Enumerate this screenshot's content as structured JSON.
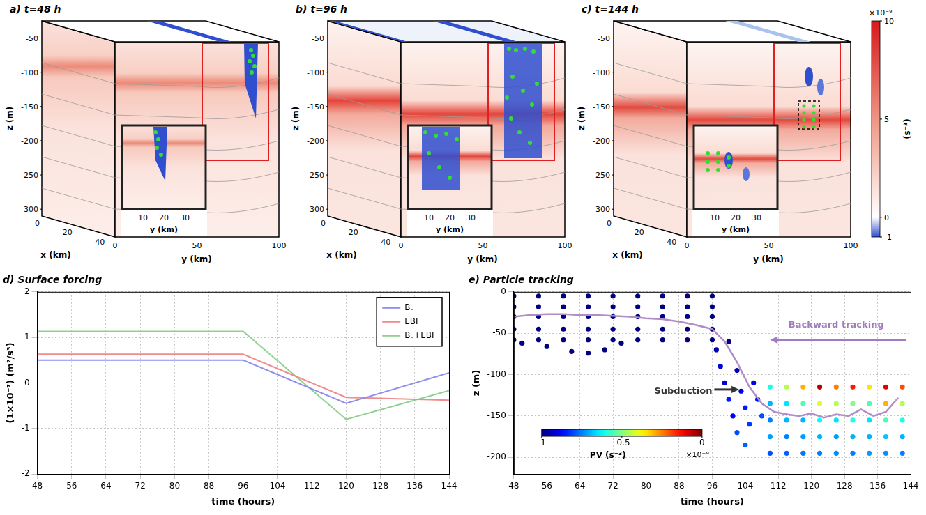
{
  "figure_3d": {
    "panels": [
      {
        "title": "a) t=48 h"
      },
      {
        "title": "b) t=96 h"
      },
      {
        "title": "c) t=144 h"
      }
    ],
    "z_label": "z (m)",
    "zlim": [
      -25,
      -310
    ],
    "zticks": [
      -50,
      -100,
      -150,
      -200,
      -250,
      -300
    ],
    "x_label": "x (km)",
    "xlim": [
      0,
      45
    ],
    "xticks": [
      0,
      20,
      40
    ],
    "y_label": "y (km)",
    "ylim": [
      0,
      100
    ],
    "yticks": [
      0,
      50,
      100
    ],
    "inset_y_label": "y (km)",
    "inset_ylim": [
      0,
      40
    ],
    "inset_yticks": [
      10,
      20,
      30
    ],
    "colorbar": {
      "label": "(s⁻³)",
      "multiplier": "×10⁻⁹",
      "range": [
        -1,
        10
      ],
      "ticks": [
        10,
        5,
        0,
        -1
      ]
    }
  },
  "chart_data": [
    {
      "type": "line",
      "title": "d) Surface forcing",
      "x_label": "time (hours)",
      "y_label": "(1×10⁻⁷) (m²/s³)",
      "x": [
        48,
        96,
        120,
        144
      ],
      "xlim": [
        48,
        144
      ],
      "xticks": [
        48,
        56,
        64,
        72,
        80,
        88,
        96,
        104,
        112,
        120,
        128,
        136,
        144
      ],
      "ylim": [
        -2,
        2
      ],
      "yticks": [
        -2,
        -1,
        0,
        1,
        2
      ],
      "grid": true,
      "legend": "upper right",
      "series": [
        {
          "name": "B₀",
          "color": "#8f8ff0",
          "values": [
            0.5,
            0.5,
            -0.45,
            0.22
          ]
        },
        {
          "name": "EBF",
          "color": "#f08c8c",
          "values": [
            0.63,
            0.63,
            -0.32,
            -0.38
          ]
        },
        {
          "name": "B₀+EBF",
          "color": "#8fd18f",
          "values": [
            1.13,
            1.13,
            -0.8,
            -0.17
          ]
        }
      ]
    },
    {
      "type": "scatter",
      "title": "e) Particle tracking",
      "x_label": "time (hours)",
      "y_label": "z (m)",
      "xlim": [
        48,
        144
      ],
      "xticks": [
        48,
        56,
        64,
        72,
        80,
        88,
        96,
        104,
        112,
        120,
        128,
        136,
        144
      ],
      "ylim": [
        -220,
        0
      ],
      "yticks": [
        -200,
        -150,
        -100,
        -50,
        0
      ],
      "grid": true,
      "colorbar": {
        "label": "PV (s⁻³)",
        "multiplier": "×10⁻⁹",
        "range": [
          -1,
          0
        ],
        "ticks": [
          -1,
          -0.5,
          0
        ]
      },
      "annotations": [
        {
          "text": "Subduction",
          "x": 89,
          "y": -120,
          "color": "#333333",
          "arrow": [
            [
              96.5,
              -118
            ],
            [
              102.5,
              -118
            ]
          ]
        },
        {
          "text": "Backward tracking",
          "x": 126,
          "y": -40,
          "color": "#a07cc0",
          "arrow": [
            [
              143,
              -58
            ],
            [
              110,
              -58
            ]
          ]
        }
      ],
      "series": [
        {
          "type": "scatter",
          "x": [
            48,
            48,
            48,
            48,
            48,
            54,
            54,
            54,
            54,
            54,
            60,
            60,
            60,
            60,
            60,
            66,
            66,
            66,
            66,
            66,
            72,
            72,
            72,
            72,
            72,
            78,
            78,
            78,
            78,
            78,
            84,
            84,
            84,
            84,
            84,
            90,
            90,
            90,
            90,
            90,
            96,
            96,
            96,
            96,
            96
          ],
          "values": [
            -5,
            -18,
            -30,
            -45,
            -58,
            -5,
            -18,
            -30,
            -45,
            -58,
            -5,
            -18,
            -30,
            -45,
            -58,
            -5,
            -18,
            -30,
            -45,
            -58,
            -5,
            -18,
            -30,
            -45,
            -58,
            -5,
            -18,
            -30,
            -45,
            -58,
            -5,
            -18,
            -30,
            -45,
            -58,
            -5,
            -18,
            -30,
            -45,
            -58,
            -5,
            -18,
            -30,
            -45,
            -58
          ],
          "pv": [
            -1,
            -1,
            -1,
            -1,
            -1,
            -1,
            -1,
            -1,
            -1,
            -1,
            -1,
            -1,
            -1,
            -1,
            -1,
            -1,
            -1,
            -1,
            -1,
            -1,
            -1,
            -1,
            -1,
            -1,
            -1,
            -1,
            -1,
            -1,
            -1,
            -1,
            -1,
            -1,
            -1,
            -1,
            -1,
            -1,
            -1,
            -1,
            -1,
            -1,
            -1,
            -1,
            -1,
            -1,
            -1
          ]
        },
        {
          "type": "scatter",
          "x": [
            50,
            56,
            62,
            66,
            70,
            74
          ],
          "values": [
            -62,
            -66,
            -72,
            -74,
            -70,
            -62
          ],
          "pv": [
            -1,
            -1,
            -1,
            -1,
            -1,
            -1
          ]
        },
        {
          "type": "scatter",
          "x": [
            97,
            98,
            99,
            100,
            100,
            101,
            102,
            102,
            103,
            104,
            104,
            105,
            106,
            107,
            108
          ],
          "values": [
            -70,
            -90,
            -110,
            -60,
            -130,
            -150,
            -95,
            -170,
            -120,
            -140,
            -185,
            -160,
            -110,
            -130,
            -150
          ],
          "pv": [
            -0.95,
            -0.9,
            -0.92,
            -1,
            -0.85,
            -0.88,
            -0.95,
            -0.8,
            -0.9,
            -0.85,
            -0.78,
            -0.82,
            -0.9,
            -0.85,
            -0.8
          ]
        },
        {
          "type": "scatter",
          "x": [
            110,
            110,
            110,
            110,
            110,
            114,
            114,
            114,
            114,
            114,
            118,
            118,
            118,
            118,
            118,
            122,
            122,
            122,
            122,
            122,
            126,
            126,
            126,
            126,
            126,
            130,
            130,
            130,
            130,
            130,
            134,
            134,
            134,
            134,
            134,
            138,
            138,
            138,
            138,
            138,
            142,
            142,
            142,
            142,
            142
          ],
          "values": [
            -115,
            -135,
            -155,
            -175,
            -195,
            -115,
            -135,
            -155,
            -175,
            -195,
            -115,
            -135,
            -155,
            -175,
            -195,
            -115,
            -135,
            -155,
            -175,
            -195,
            -115,
            -135,
            -155,
            -175,
            -195,
            -115,
            -135,
            -155,
            -175,
            -195,
            -115,
            -135,
            -155,
            -175,
            -195,
            -115,
            -135,
            -155,
            -175,
            -195,
            -115,
            -135,
            -155,
            -175,
            -195
          ],
          "pv": [
            -0.6,
            -0.7,
            -0.75,
            -0.72,
            -0.8,
            -0.45,
            -0.65,
            -0.7,
            -0.75,
            -0.78,
            -0.3,
            -0.55,
            -0.7,
            -0.72,
            -0.76,
            -0.05,
            -0.4,
            -0.62,
            -0.7,
            -0.75,
            -0.25,
            -0.45,
            -0.65,
            -0.72,
            -0.74,
            -0.15,
            -0.5,
            -0.6,
            -0.7,
            -0.75,
            -0.35,
            -0.55,
            -0.65,
            -0.7,
            -0.72,
            -0.1,
            -0.3,
            -0.55,
            -0.68,
            -0.73,
            -0.2,
            -0.45,
            -0.6,
            -0.7,
            -0.75
          ]
        },
        {
          "type": "line",
          "color": "#b08cc8",
          "line_style": "solid",
          "x": [
            48,
            52,
            56,
            60,
            64,
            68,
            72,
            76,
            80,
            84,
            88,
            92,
            96,
            99,
            102,
            105,
            108,
            111,
            114,
            117,
            120,
            123,
            126,
            129,
            132,
            135,
            138,
            141
          ],
          "values": [
            -30,
            -28,
            -27,
            -27,
            -28,
            -28,
            -29,
            -30,
            -32,
            -33,
            -36,
            -40,
            -45,
            -60,
            -85,
            -115,
            -135,
            -145,
            -148,
            -150,
            -147,
            -152,
            -148,
            -150,
            -142,
            -150,
            -145,
            -128
          ]
        }
      ]
    }
  ]
}
